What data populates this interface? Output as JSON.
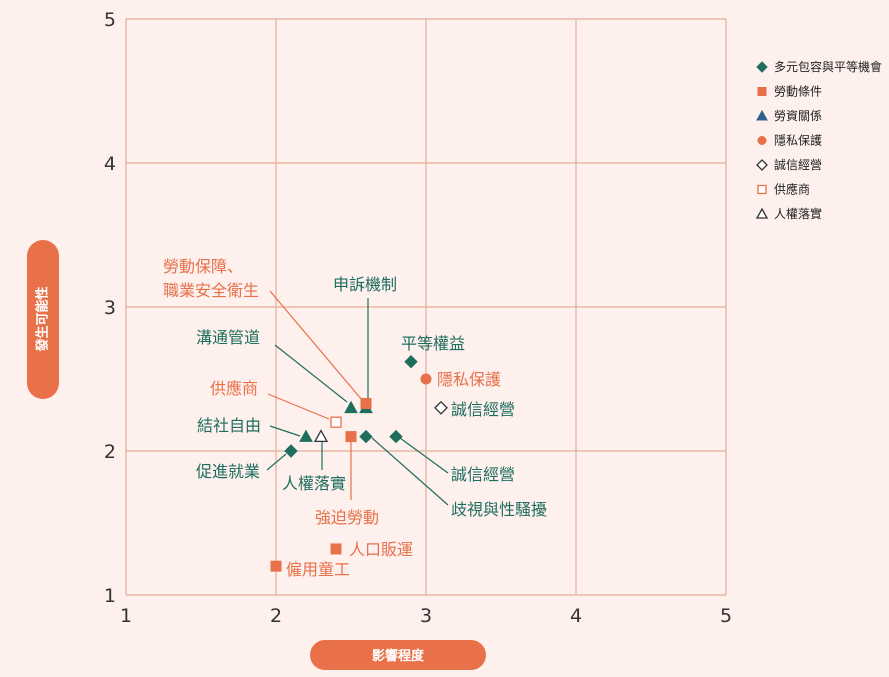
{
  "chart_data": {
    "type": "scatter",
    "xlabel": "影響程度",
    "ylabel": "發生可能性",
    "xlim": [
      1,
      5
    ],
    "ylim": [
      1,
      5
    ],
    "x_ticks": [
      "1",
      "2",
      "3",
      "4",
      "5"
    ],
    "y_ticks": [
      "1",
      "2",
      "3",
      "4",
      "5"
    ],
    "grid": true,
    "legend_position": "right",
    "colors": {
      "green": "#1e6e5e",
      "orange": "#e8714a",
      "blue": "#2f5f8f",
      "grid": "#e6ad98",
      "pill": "#e8714a"
    },
    "legend": [
      {
        "name": "多元包容與平等機會",
        "marker": "diamond",
        "fill": "#1e6e5e",
        "stroke": "#1e6e5e"
      },
      {
        "name": "勞動條件",
        "marker": "square",
        "fill": "#e8714a",
        "stroke": "#e8714a"
      },
      {
        "name": "勞資關係",
        "marker": "triangle",
        "fill": "#2f5f8f",
        "stroke": "#2f5f8f"
      },
      {
        "name": "隱私保護",
        "marker": "circle",
        "fill": "#e8714a",
        "stroke": "#e8714a"
      },
      {
        "name": "誠信經營",
        "marker": "diamond",
        "fill": "none",
        "stroke": "#333333"
      },
      {
        "name": "供應商",
        "marker": "square",
        "fill": "none",
        "stroke": "#e8714a"
      },
      {
        "name": "人權落實",
        "marker": "triangle",
        "fill": "none",
        "stroke": "#333333"
      }
    ],
    "points": [
      {
        "label": "平等權益",
        "x": 2.9,
        "y": 2.62,
        "marker": "diamond",
        "fill": "#1e6e5e",
        "stroke": "#1e6e5e",
        "label_color": "#1e6e5e"
      },
      {
        "label": "隱私保護",
        "x": 3.0,
        "y": 2.5,
        "marker": "circle",
        "fill": "#e8714a",
        "stroke": "#e8714a",
        "label_color": "#e8714a"
      },
      {
        "label": "誠信經營",
        "x": 3.1,
        "y": 2.3,
        "marker": "diamond",
        "fill": "none",
        "stroke": "#333333",
        "label_color": "#1e6e5e"
      },
      {
        "label": "申訴機制",
        "x": 2.6,
        "y": 2.3,
        "marker": "triangle",
        "fill": "#1e6e5e",
        "stroke": "#1e6e5e",
        "label_color": "#1e6e5e"
      },
      {
        "label": "勞動保障、職業安全衛生",
        "x": 2.6,
        "y": 2.33,
        "marker": "square",
        "fill": "#e8714a",
        "stroke": "#e8714a",
        "label_color": "#e8714a"
      },
      {
        "label": "溝通管道",
        "x": 2.5,
        "y": 2.3,
        "marker": "triangle",
        "fill": "#1e6e5e",
        "stroke": "#1e6e5e",
        "label_color": "#1e6e5e"
      },
      {
        "label": "供應商",
        "x": 2.4,
        "y": 2.2,
        "marker": "square",
        "fill": "none",
        "stroke": "#e8714a",
        "label_color": "#e8714a"
      },
      {
        "label": "結社自由",
        "x": 2.2,
        "y": 2.1,
        "marker": "triangle",
        "fill": "#1e6e5e",
        "stroke": "#1e6e5e",
        "label_color": "#1e6e5e"
      },
      {
        "label": "人權落實",
        "x": 2.3,
        "y": 2.1,
        "marker": "triangle",
        "fill": "none",
        "stroke": "#333333",
        "label_color": "#1e6e5e"
      },
      {
        "label": "促進就業",
        "x": 2.1,
        "y": 2.0,
        "marker": "diamond",
        "fill": "#1e6e5e",
        "stroke": "#1e6e5e",
        "label_color": "#1e6e5e"
      },
      {
        "label": "強迫勞動",
        "x": 2.5,
        "y": 2.1,
        "marker": "square",
        "fill": "#e8714a",
        "stroke": "#e8714a",
        "label_color": "#e8714a"
      },
      {
        "label": "歧視與性騷擾",
        "x": 2.6,
        "y": 2.1,
        "marker": "diamond",
        "fill": "#1e6e5e",
        "stroke": "#1e6e5e",
        "label_color": "#1e6e5e"
      },
      {
        "label": "誠信經營",
        "x": 2.8,
        "y": 2.1,
        "marker": "diamond",
        "fill": "#1e6e5e",
        "stroke": "#1e6e5e",
        "label_color": "#1e6e5e"
      },
      {
        "label": "人口販運",
        "x": 2.4,
        "y": 1.32,
        "marker": "square",
        "fill": "#e8714a",
        "stroke": "#e8714a",
        "label_color": "#e8714a"
      },
      {
        "label": "僱用童工",
        "x": 2.0,
        "y": 1.2,
        "marker": "square",
        "fill": "#e8714a",
        "stroke": "#e8714a",
        "label_color": "#e8714a"
      }
    ]
  }
}
